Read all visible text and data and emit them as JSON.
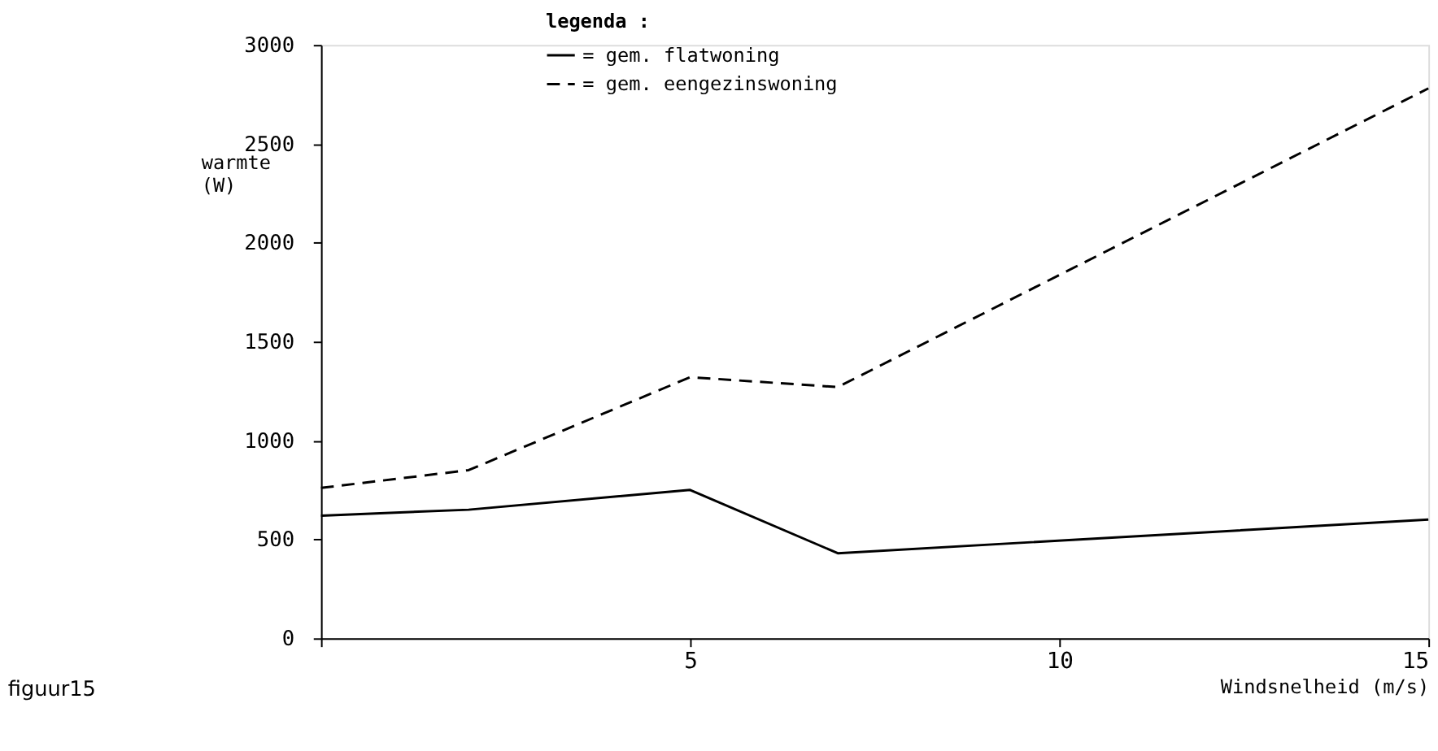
{
  "chart_data": {
    "type": "line",
    "xlabel": "Windsnelheid (m/s)",
    "ylabel": "warmte (W)",
    "legend_title": "legenda :",
    "legend": "top",
    "grid": false,
    "marker": "none",
    "xlim": [
      0,
      15
    ],
    "xticks": [
      {
        "value": 0,
        "label": null
      },
      5,
      10,
      15
    ],
    "ylim": [
      0,
      3000
    ],
    "yticks": [
      0,
      500,
      1000,
      1500,
      2000,
      2500,
      3000
    ],
    "annotations": [
      "figuur15"
    ],
    "series": [
      {
        "name": "= gem. flatwoning",
        "color": "#000000",
        "line_style": "solid",
        "x": [
          0,
          2,
          5,
          7,
          15
        ],
        "values": [
          620,
          650,
          750,
          430,
          600
        ]
      },
      {
        "name": "= gem. eengezinswoning",
        "color": "#000000",
        "line_style": "dashed",
        "x": [
          0,
          2,
          5,
          7,
          15
        ],
        "values": [
          760,
          850,
          1320,
          1270,
          2780
        ]
      }
    ]
  }
}
